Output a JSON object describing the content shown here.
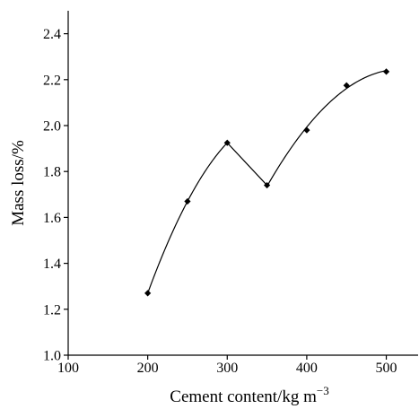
{
  "chart_data": {
    "type": "scatter",
    "title": "",
    "xlabel": "Cement content/kg m",
    "xlabel_superscript": "−3",
    "ylabel": "Mass loss/%",
    "xlim": [
      100,
      540
    ],
    "ylim": [
      1.0,
      2.5
    ],
    "xticks": [
      100,
      200,
      300,
      400,
      500
    ],
    "yticks": [
      1.0,
      1.2,
      1.4,
      1.6,
      1.8,
      2.0,
      2.2,
      2.4
    ],
    "xtick_labels": [
      "100",
      "200",
      "300",
      "400",
      "500"
    ],
    "ytick_labels": [
      "1.0",
      "1.2",
      "1.4",
      "1.6",
      "1.8",
      "2.0",
      "2.2",
      "2.4"
    ],
    "grid": false,
    "legend": "none",
    "marker": "diamond",
    "color": "#000000",
    "series": [
      {
        "x": [
          200,
          250,
          300,
          350,
          400,
          450,
          500
        ],
        "y": [
          1.27,
          1.67,
          1.925,
          1.74,
          1.98,
          2.175,
          2.235
        ]
      }
    ]
  }
}
